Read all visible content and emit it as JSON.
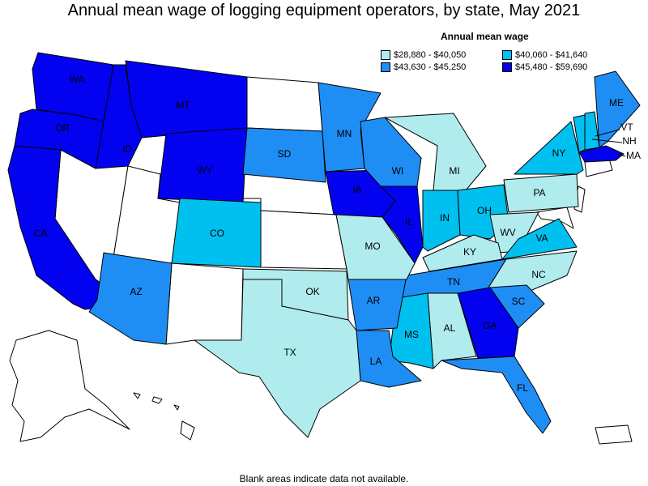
{
  "title": "Annual mean wage of logging equipment operators, by state, May 2021",
  "legend": {
    "title": "Annual mean wage",
    "items": [
      {
        "label": "$28,880 - $40,050",
        "color": "#b0ecee"
      },
      {
        "label": "$40,060 - $41,640",
        "color": "#00c0ef"
      },
      {
        "label": "$43,630 - $45,250",
        "color": "#1e8ef5"
      },
      {
        "label": "$45,480 - $59,690",
        "color": "#0202f0"
      }
    ]
  },
  "footnote": "Blank areas indicate data not available.",
  "states": [
    {
      "abbr": "WA",
      "class": 3
    },
    {
      "abbr": "OR",
      "class": 3
    },
    {
      "abbr": "CA",
      "class": 3
    },
    {
      "abbr": "ID",
      "class": 3
    },
    {
      "abbr": "MT",
      "class": 3
    },
    {
      "abbr": "WY",
      "class": 3
    },
    {
      "abbr": "IA",
      "class": 3
    },
    {
      "abbr": "IL",
      "class": 3
    },
    {
      "abbr": "GA",
      "class": 3
    },
    {
      "abbr": "MA",
      "class": 3
    },
    {
      "abbr": "SD",
      "class": 2
    },
    {
      "abbr": "MN",
      "class": 2
    },
    {
      "abbr": "WI",
      "class": 2
    },
    {
      "abbr": "AZ",
      "class": 2
    },
    {
      "abbr": "AR",
      "class": 2
    },
    {
      "abbr": "LA",
      "class": 2
    },
    {
      "abbr": "TN",
      "class": 2
    },
    {
      "abbr": "SC",
      "class": 2
    },
    {
      "abbr": "FL",
      "class": 2
    },
    {
      "abbr": "ME",
      "class": 2
    },
    {
      "abbr": "CO",
      "class": 1
    },
    {
      "abbr": "IN",
      "class": 1
    },
    {
      "abbr": "OH",
      "class": 1
    },
    {
      "abbr": "VA",
      "class": 1
    },
    {
      "abbr": "MS",
      "class": 1
    },
    {
      "abbr": "NY",
      "class": 1
    },
    {
      "abbr": "NH",
      "class": 1
    },
    {
      "abbr": "VT",
      "class": 1
    },
    {
      "abbr": "MI",
      "class": 0
    },
    {
      "abbr": "PA",
      "class": 0
    },
    {
      "abbr": "WV",
      "class": 0
    },
    {
      "abbr": "KY",
      "class": 0
    },
    {
      "abbr": "NC",
      "class": 0
    },
    {
      "abbr": "AL",
      "class": 0
    },
    {
      "abbr": "MO",
      "class": 0
    },
    {
      "abbr": "OK",
      "class": 0
    },
    {
      "abbr": "TX",
      "class": 0
    }
  ]
}
